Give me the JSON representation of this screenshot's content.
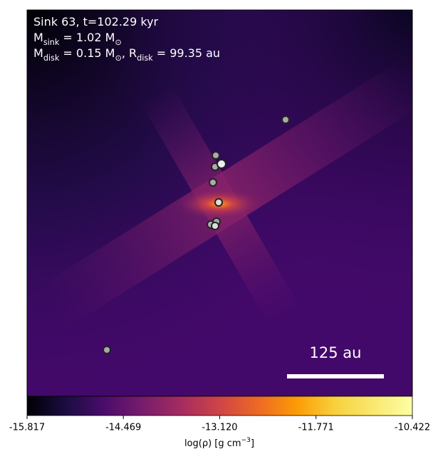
{
  "chart_data": {
    "type": "density-map",
    "annotations": [
      [
        "Sink 63, t=102.29 kyr"
      ],
      [
        "M",
        "sink",
        " = 1.02 M",
        "⊙"
      ],
      [
        "M",
        "disk",
        " = 0.15 M",
        "⊙",
        ", R",
        "disk",
        " = 99.35 au"
      ]
    ],
    "scale_bar_label": "125 au",
    "colorbar_label": [
      "log(ρ) [g cm",
      "−3",
      "]"
    ],
    "clim": [
      -15.817,
      -10.422
    ],
    "cticks": [
      -15.817,
      -14.469,
      {
        "value": -13.12,
        "label": "-13.120"
      },
      -11.771,
      -10.422
    ]
  }
}
